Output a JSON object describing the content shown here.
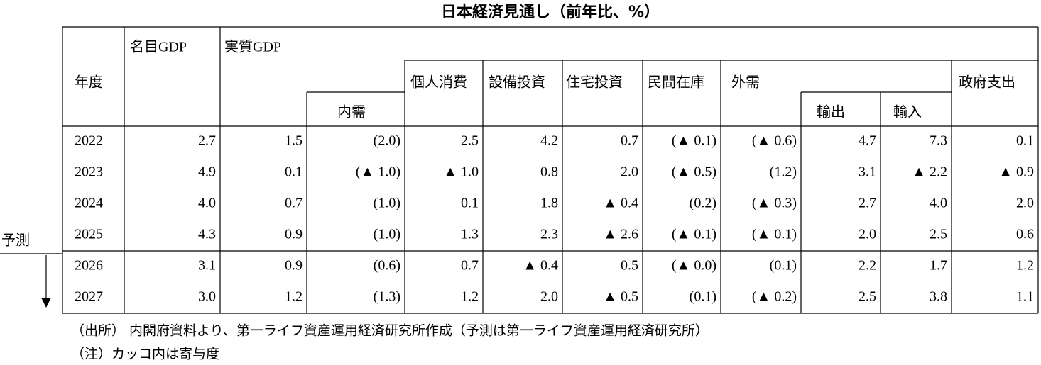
{
  "title": "日本経済見通し（前年比、%）",
  "table": {
    "headers": [
      "年度",
      "名目GDP",
      "実質GDP",
      "内需",
      "個人消費",
      "設備投資",
      "住宅投資",
      "民間在庫",
      "外需",
      "輸出",
      "輸入",
      "政府支出"
    ],
    "rows": [
      [
        "2022",
        "2.7",
        "1.5",
        "(2.0)",
        "2.5",
        "4.2",
        "0.7",
        "(▲ 0.1)",
        "(▲ 0.6)",
        "4.7",
        "7.3",
        "0.1"
      ],
      [
        "2023",
        "4.9",
        "0.1",
        "(▲ 1.0)",
        "▲ 1.0",
        "0.8",
        "2.0",
        "(▲ 0.5)",
        "(1.2)",
        "3.1",
        "▲ 2.2",
        "▲ 0.9"
      ],
      [
        "2024",
        "4.0",
        "0.7",
        "(1.0)",
        "0.1",
        "1.8",
        "▲ 0.4",
        "(0.2)",
        "(▲ 0.3)",
        "2.7",
        "4.0",
        "2.0"
      ],
      [
        "2025",
        "4.3",
        "0.9",
        "(1.0)",
        "1.3",
        "2.3",
        "▲ 2.6",
        "(▲ 0.1)",
        "(▲ 0.1)",
        "2.0",
        "2.5",
        "0.6"
      ],
      [
        "2026",
        "3.1",
        "0.9",
        "(0.6)",
        "0.7",
        "▲ 0.4",
        "0.5",
        "(▲ 0.0)",
        "(0.1)",
        "2.2",
        "1.7",
        "1.2"
      ],
      [
        "2027",
        "3.0",
        "1.2",
        "(1.3)",
        "1.2",
        "2.0",
        "▲ 0.5",
        "(0.1)",
        "(▲ 0.2)",
        "2.5",
        "3.8",
        "1.1"
      ]
    ]
  },
  "forecast_label": "予測",
  "notes": [
    "（出所） 内閣府資料より、第一ライフ資産運用経済研究所作成（予測は第一ライフ資産運用経済研究所）",
    "（注）カッコ内は寄与度"
  ]
}
